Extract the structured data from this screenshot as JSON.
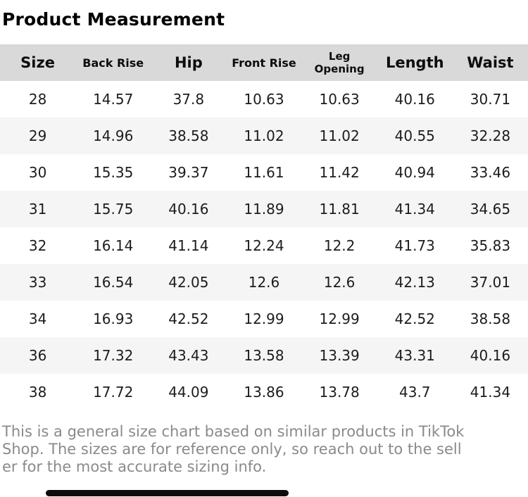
{
  "page": {
    "title": "Product Measurement"
  },
  "table": {
    "headers": [
      "Size",
      "Back Rise",
      "Hip",
      "Front Rise",
      "Leg Opening",
      "Length",
      "Waist"
    ],
    "rows": [
      [
        "28",
        "14.57",
        "37.8",
        "10.63",
        "10.63",
        "40.16",
        "30.71"
      ],
      [
        "29",
        "14.96",
        "38.58",
        "11.02",
        "11.02",
        "40.55",
        "32.28"
      ],
      [
        "30",
        "15.35",
        "39.37",
        "11.61",
        "11.42",
        "40.94",
        "33.46"
      ],
      [
        "31",
        "15.75",
        "40.16",
        "11.89",
        "11.81",
        "41.34",
        "34.65"
      ],
      [
        "32",
        "16.14",
        "41.14",
        "12.24",
        "12.2",
        "41.73",
        "35.83"
      ],
      [
        "33",
        "16.54",
        "42.05",
        "12.6",
        "12.6",
        "42.13",
        "37.01"
      ],
      [
        "34",
        "16.93",
        "42.52",
        "12.99",
        "12.99",
        "42.52",
        "38.58"
      ],
      [
        "36",
        "17.32",
        "43.43",
        "13.58",
        "13.39",
        "43.31",
        "40.16"
      ],
      [
        "38",
        "17.72",
        "44.09",
        "13.86",
        "13.78",
        "43.7",
        "41.34"
      ]
    ]
  },
  "footer": {
    "full_text": "This is a general size chart based on similar products in TikTok Shop. The sizes are for reference only, so reach out to the seller for the most accurate sizing info.",
    "lines": [
      "This is a general size chart based on similar products in TikTok",
      "Shop. The sizes are for reference only, so reach out to the sell",
      "er for the most accurate sizing info."
    ]
  },
  "colors": {
    "header_background": "#d9d9d9",
    "stripe_background": "#f5f5f5",
    "body_text": "#1c1c1c",
    "footer_text": "#8a8a8a",
    "scrollbar_thumb": "#0d0d0d"
  }
}
